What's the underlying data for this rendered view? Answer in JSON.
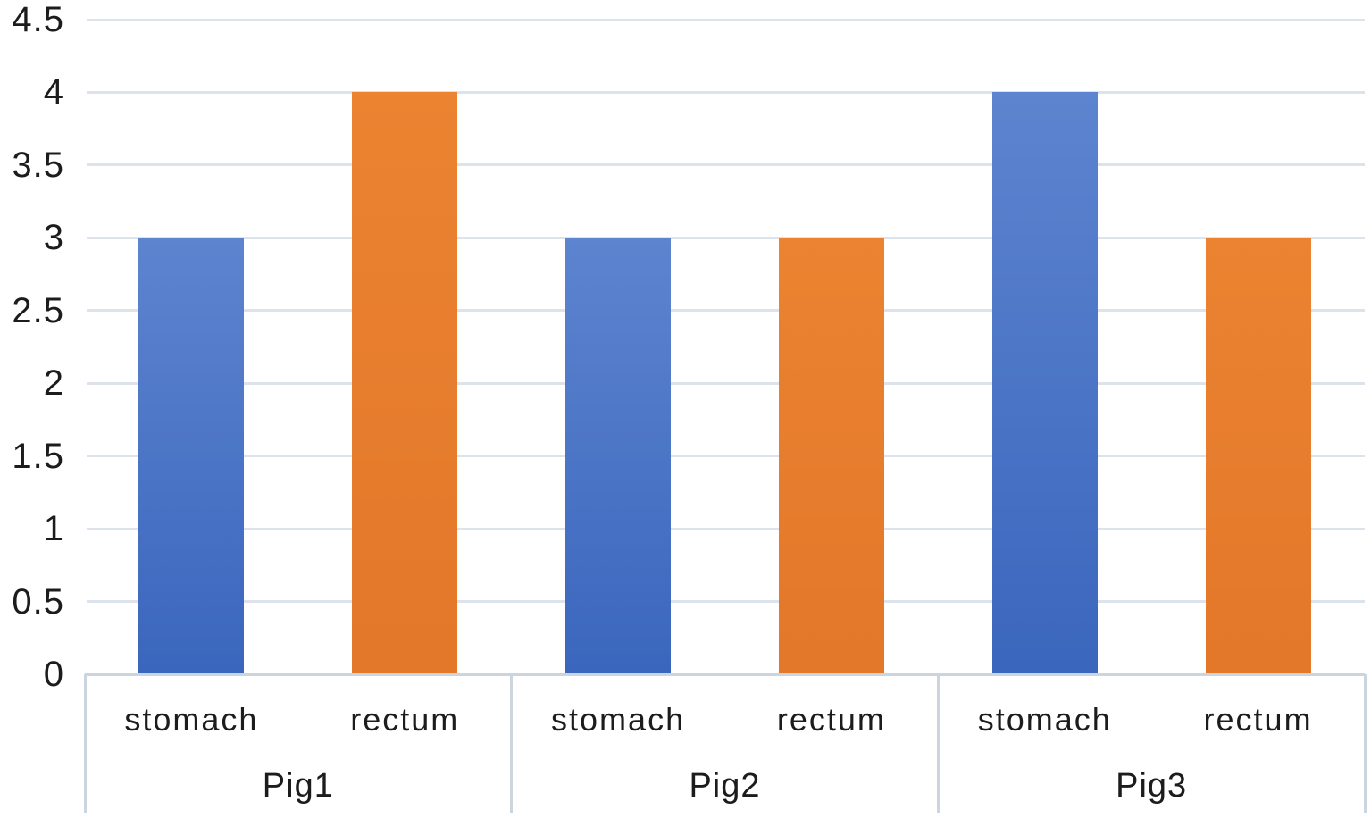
{
  "chart_data": {
    "type": "bar",
    "title": "",
    "xlabel": "",
    "ylabel": "",
    "ylim": [
      0,
      4.5
    ],
    "yticks": [
      0,
      0.5,
      1,
      1.5,
      2,
      2.5,
      3,
      3.5,
      4,
      4.5
    ],
    "ytick_labels": [
      "0",
      "0.5",
      "1",
      "1.5",
      "2",
      "2.5",
      "3",
      "3.5",
      "4",
      "4.5"
    ],
    "grid": true,
    "legend": "none",
    "groups": [
      {
        "label": "Pig1",
        "categories": [
          "stomach",
          "rectum"
        ],
        "values": [
          3,
          4
        ]
      },
      {
        "label": "Pig2",
        "categories": [
          "stomach",
          "rectum"
        ],
        "values": [
          3,
          3
        ]
      },
      {
        "label": "Pig3",
        "categories": [
          "stomach",
          "rectum"
        ],
        "values": [
          4,
          3
        ]
      }
    ],
    "series": [
      {
        "name": "stomach",
        "color": "#4472C4",
        "values": [
          3,
          3,
          4
        ]
      },
      {
        "name": "rectum",
        "color": "#ED7D31",
        "values": [
          4,
          3,
          3
        ]
      }
    ],
    "colors": {
      "bar_blue": "#4472C4",
      "bar_blue_gradient_top": "#5d84cf",
      "bar_blue_gradient_bottom": "#3a66bd",
      "bar_orange": "#ED7D31",
      "gridline": "#dde3ec",
      "axis_line": "#ccd4e0",
      "text": "#1c1c1c",
      "background": "#ffffff"
    }
  }
}
